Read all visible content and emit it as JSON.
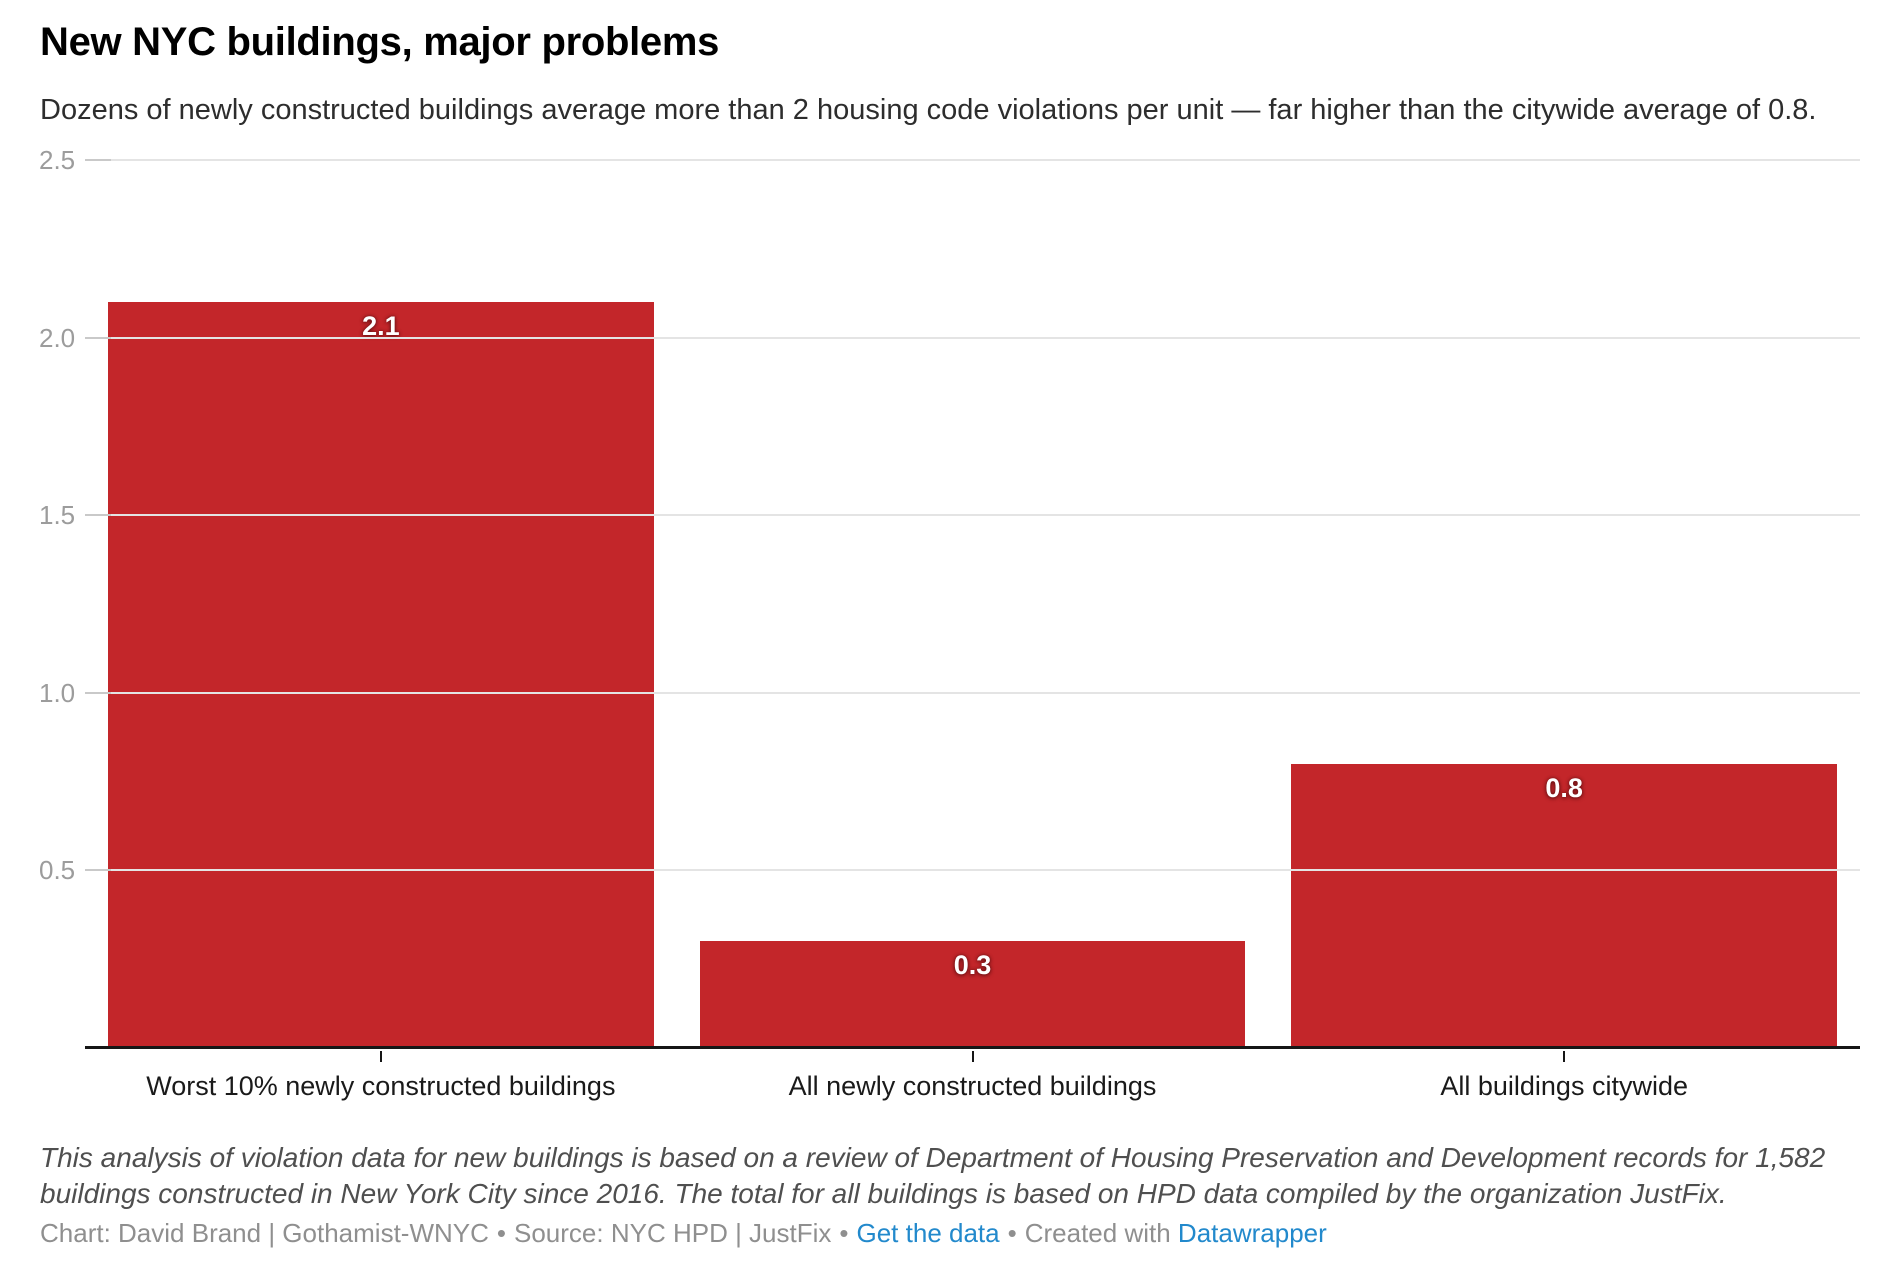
{
  "chart_data": {
    "type": "bar",
    "title": "New NYC buildings, major problems",
    "subtitle": "Dozens of newly constructed buildings average more than 2 housing code violations per unit — far higher than the citywide average of 0.8.",
    "categories": [
      "Worst 10% newly constructed buildings",
      "All newly constructed buildings",
      "All buildings citywide"
    ],
    "values": [
      2.1,
      0.3,
      0.8
    ],
    "value_labels": [
      "2.1",
      "0.3",
      "0.8"
    ],
    "xlabel": "",
    "ylabel": "",
    "ylim": [
      0,
      2.5
    ],
    "yticks": [
      0.5,
      1.0,
      1.5,
      2.0,
      2.5
    ],
    "grid": "horizontal",
    "legend": "none",
    "colors": {
      "bar": "#c3262a",
      "gridline": "#e4e4e4",
      "axis_line": "#161616",
      "ytick_label": "#9c9c9c",
      "value_label": "#ffffff"
    }
  },
  "footer": {
    "notes": "This analysis of violation data for new buildings is based on a review of Department of Housing Preservation and Development records for 1,582 buildings constructed in New York City since 2016. The total for all buildings is based on HPD data compiled by the organization JustFix.",
    "byline": "Chart: David Brand | Gothamist-WNYC",
    "separator": "•",
    "source_label": "Source: NYC HPD | JustFix",
    "get_data_label": "Get the data",
    "created_with_label": "Created with",
    "datawrapper_label": "Datawrapper",
    "link_color": "#2289cc"
  }
}
